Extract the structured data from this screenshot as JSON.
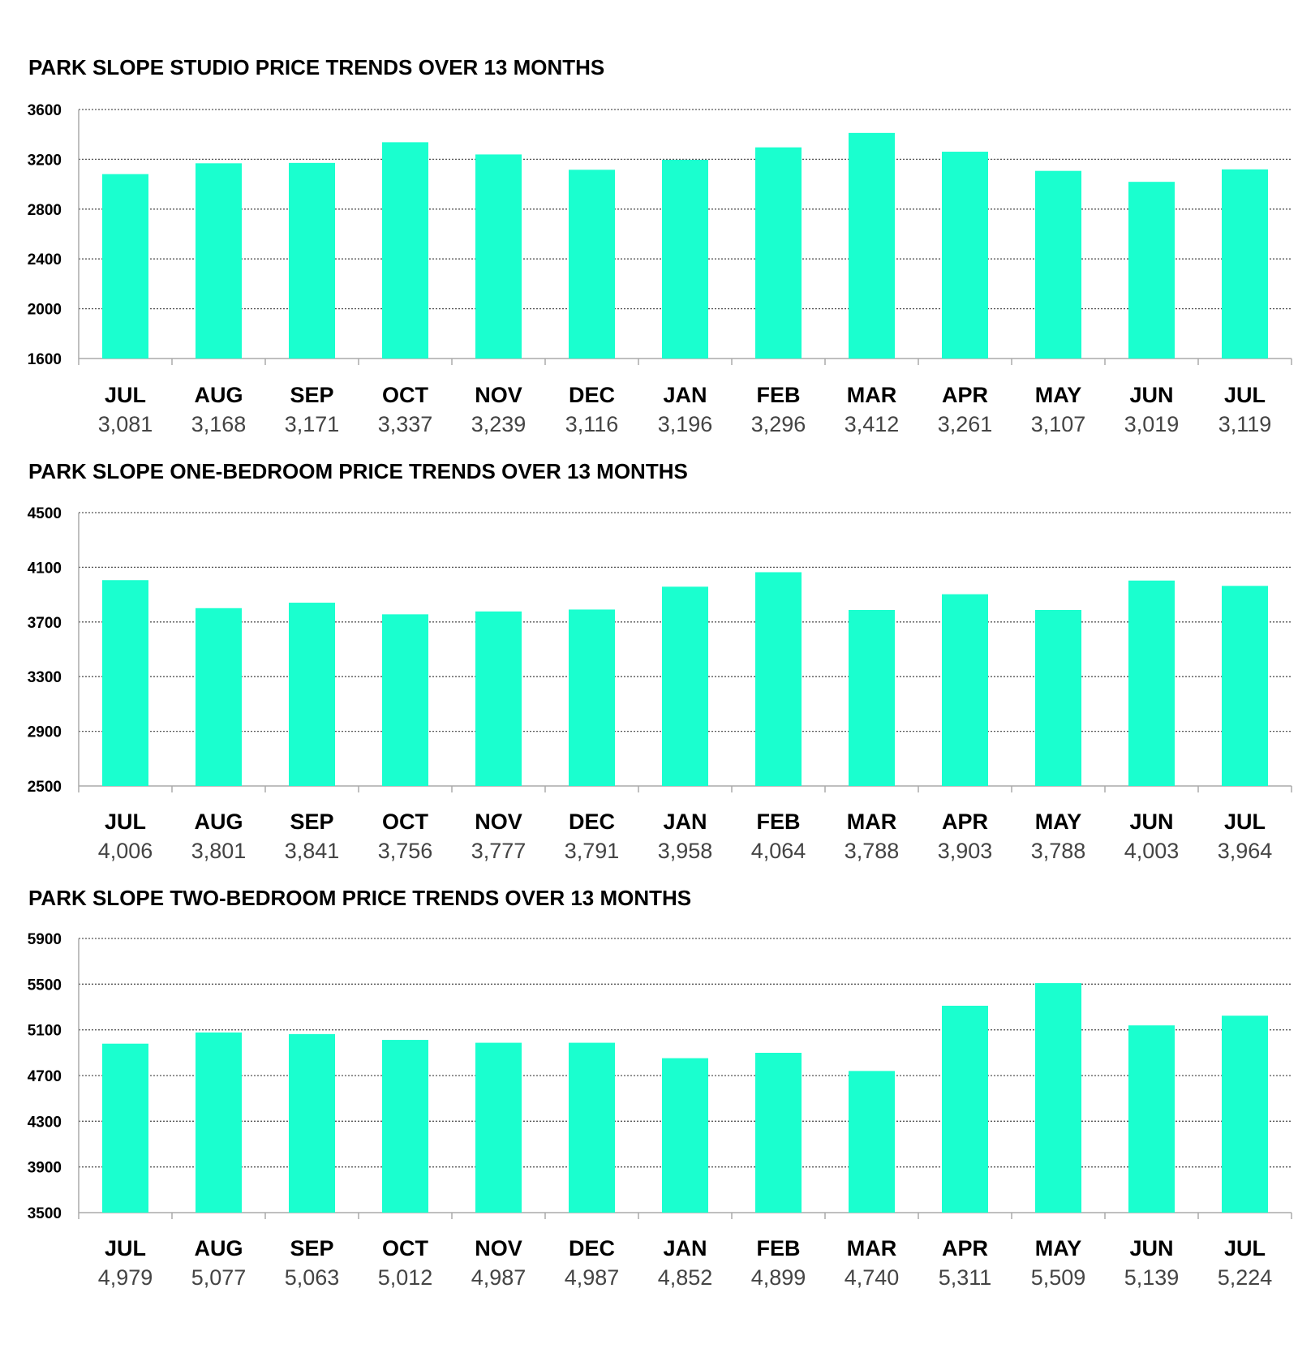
{
  "chart_data": [
    {
      "type": "bar",
      "title": "PARK SLOPE STUDIO PRICE TRENDS OVER 13 MONTHS",
      "categories": [
        "JUL",
        "AUG",
        "SEP",
        "OCT",
        "NOV",
        "DEC",
        "JAN",
        "FEB",
        "MAR",
        "APR",
        "MAY",
        "JUN",
        "JUL"
      ],
      "value_labels": [
        "3,081",
        "3,168",
        "3,171",
        "3,337",
        "3,239",
        "3,116",
        "3,196",
        "3,296",
        "3,412",
        "3,261",
        "3,107",
        "3,019",
        "3,119"
      ],
      "values": [
        3081,
        3168,
        3171,
        3337,
        3239,
        3116,
        3196,
        3296,
        3412,
        3261,
        3107,
        3019,
        3119
      ],
      "yticks": [
        1600,
        2000,
        2400,
        2800,
        3200,
        3600
      ],
      "ylim": [
        1600,
        3600
      ],
      "grid": true
    },
    {
      "type": "bar",
      "title": "PARK SLOPE ONE-BEDROOM PRICE TRENDS OVER 13 MONTHS",
      "categories": [
        "JUL",
        "AUG",
        "SEP",
        "OCT",
        "NOV",
        "DEC",
        "JAN",
        "FEB",
        "MAR",
        "APR",
        "MAY",
        "JUN",
        "JUL"
      ],
      "value_labels": [
        "4,006",
        "3,801",
        "3,841",
        "3,756",
        "3,777",
        "3,791",
        "3,958",
        "4,064",
        "3,788",
        "3,903",
        "3,788",
        "4,003",
        "3,964"
      ],
      "values": [
        4006,
        3801,
        3841,
        3756,
        3777,
        3791,
        3958,
        4064,
        3788,
        3903,
        3788,
        4003,
        3964
      ],
      "yticks": [
        2500,
        2900,
        3300,
        3700,
        4100,
        4500
      ],
      "ylim": [
        2500,
        4500
      ],
      "grid": true
    },
    {
      "type": "bar",
      "title": "PARK SLOPE TWO-BEDROOM PRICE TRENDS OVER 13 MONTHS",
      "categories": [
        "JUL",
        "AUG",
        "SEP",
        "OCT",
        "NOV",
        "DEC",
        "JAN",
        "FEB",
        "MAR",
        "APR",
        "MAY",
        "JUN",
        "JUL"
      ],
      "value_labels": [
        "4,979",
        "5,077",
        "5,063",
        "5,012",
        "4,987",
        "4,987",
        "4,852",
        "4,899",
        "4,740",
        "5,311",
        "5,509",
        "5,139",
        "5,224"
      ],
      "values": [
        4979,
        5077,
        5063,
        5012,
        4987,
        4987,
        4852,
        4899,
        4740,
        5311,
        5509,
        5139,
        5224
      ],
      "yticks": [
        3500,
        3900,
        4300,
        4700,
        5100,
        5500,
        5900
      ],
      "ylim": [
        3500,
        5900
      ],
      "grid": true
    }
  ],
  "colors": {
    "bar": "#1affcf",
    "text": "#000000",
    "value_text": "#444444",
    "grid": "#555555",
    "axis": "#aaaaaa"
  }
}
